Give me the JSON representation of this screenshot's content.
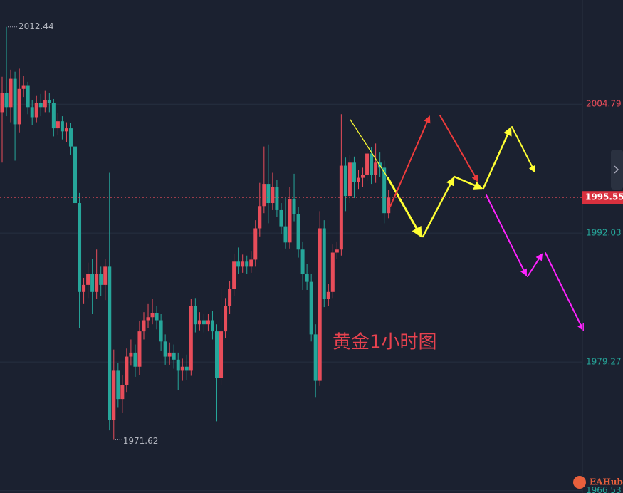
{
  "chart_data": {
    "type": "candlestick",
    "annotation": "黄金1小时图",
    "up_color": "#e84d5a",
    "down_color": "#26a69a",
    "grid": true,
    "ylim": [
      1966.3,
      2015.1
    ],
    "yticks": [
      1966.53,
      1979.27,
      1992.03,
      2004.79
    ],
    "ohlc": [
      [
        2004.0,
        2007.5,
        1999.0,
        2005.9
      ],
      [
        2005.9,
        2012.44,
        2003.6,
        2004.5
      ],
      [
        2004.5,
        2008.2,
        2003.0,
        2007.3
      ],
      [
        2007.3,
        2008.0,
        1999.2,
        2002.8
      ],
      [
        2002.8,
        2008.3,
        2002.0,
        2006.3
      ],
      [
        2006.3,
        2007.6,
        2005.5,
        2006.6
      ],
      [
        2006.6,
        2007.0,
        2003.8,
        2004.5
      ],
      [
        2004.5,
        2005.2,
        2002.7,
        2003.5
      ],
      [
        2003.5,
        2005.6,
        2003.0,
        2004.9
      ],
      [
        2004.9,
        2005.8,
        2003.6,
        2004.5
      ],
      [
        2004.5,
        2006.1,
        2004.0,
        2005.2
      ],
      [
        2005.2,
        2005.9,
        2004.0,
        2004.9
      ],
      [
        2004.9,
        2005.3,
        2001.6,
        2002.4
      ],
      [
        2002.4,
        2003.9,
        2001.7,
        2003.1
      ],
      [
        2003.1,
        2003.6,
        2001.3,
        2002.1
      ],
      [
        2002.1,
        2003.0,
        2001.0,
        2002.4
      ],
      [
        2002.4,
        2002.9,
        1999.8,
        2000.6
      ],
      [
        2000.6,
        2001.2,
        1993.9,
        1995.0
      ],
      [
        1995.0,
        1996.0,
        1982.6,
        1986.2
      ],
      [
        1986.2,
        1987.6,
        1985.0,
        1986.9
      ],
      [
        1986.9,
        1989.1,
        1985.6,
        1988.0
      ],
      [
        1988.0,
        1989.5,
        1984.0,
        1986.2
      ],
      [
        1986.2,
        1990.4,
        1985.5,
        1988.0
      ],
      [
        1988.0,
        1988.7,
        1985.8,
        1986.9
      ],
      [
        1986.9,
        1989.5,
        1985.4,
        1988.7
      ],
      [
        1988.7,
        1998.0,
        1972.5,
        1973.5
      ],
      [
        1973.5,
        1980.5,
        1971.62,
        1978.4
      ],
      [
        1978.4,
        1979.2,
        1974.8,
        1975.6
      ],
      [
        1975.6,
        1978.0,
        1974.2,
        1977.0
      ],
      [
        1977.0,
        1980.6,
        1976.3,
        1979.8
      ],
      [
        1979.8,
        1981.5,
        1978.9,
        1980.2
      ],
      [
        1980.2,
        1981.0,
        1977.8,
        1978.8
      ],
      [
        1978.8,
        1983.3,
        1978.0,
        1982.3
      ],
      [
        1982.3,
        1984.2,
        1981.5,
        1983.4
      ],
      [
        1983.4,
        1985.0,
        1982.6,
        1983.7
      ],
      [
        1983.7,
        1985.5,
        1983.0,
        1984.1
      ],
      [
        1984.1,
        1984.8,
        1982.5,
        1983.4
      ],
      [
        1983.4,
        1984.0,
        1980.4,
        1981.3
      ],
      [
        1981.3,
        1982.0,
        1979.0,
        1979.8
      ],
      [
        1979.8,
        1981.2,
        1979.0,
        1980.2
      ],
      [
        1980.2,
        1981.0,
        1978.6,
        1979.5
      ],
      [
        1979.5,
        1980.2,
        1976.5,
        1978.4
      ],
      [
        1978.4,
        1979.6,
        1977.4,
        1978.8
      ],
      [
        1978.8,
        1980.0,
        1977.5,
        1978.4
      ],
      [
        1978.4,
        1985.5,
        1977.9,
        1984.8
      ],
      [
        1984.8,
        1985.6,
        1982.2,
        1983.0
      ],
      [
        1983.0,
        1984.2,
        1982.4,
        1983.4
      ],
      [
        1983.4,
        1984.0,
        1982.2,
        1983.0
      ],
      [
        1983.0,
        1984.0,
        1982.3,
        1983.4
      ],
      [
        1983.4,
        1984.3,
        1981.5,
        1982.3
      ],
      [
        1982.3,
        1983.0,
        1973.4,
        1977.7
      ],
      [
        1977.7,
        1986.5,
        1977.0,
        1982.3
      ],
      [
        1982.3,
        1985.6,
        1981.6,
        1984.8
      ],
      [
        1984.8,
        1987.3,
        1984.0,
        1986.5
      ],
      [
        1986.5,
        1990.0,
        1985.8,
        1989.2
      ],
      [
        1989.2,
        1990.6,
        1988.0,
        1988.7
      ],
      [
        1988.7,
        1989.9,
        1988.1,
        1989.2
      ],
      [
        1989.2,
        1989.8,
        1988.0,
        1988.7
      ],
      [
        1988.7,
        1990.2,
        1988.1,
        1989.4
      ],
      [
        1989.4,
        1993.3,
        1988.7,
        1992.5
      ],
      [
        1992.5,
        1997.0,
        1991.7,
        1994.7
      ],
      [
        1994.7,
        2000.6,
        1994.0,
        1996.9
      ],
      [
        1996.9,
        2000.8,
        1993.0,
        1995.0
      ],
      [
        1995.0,
        1998.0,
        1994.3,
        1996.6
      ],
      [
        1996.6,
        1997.3,
        1993.6,
        1994.3
      ],
      [
        1994.3,
        1995.0,
        1991.9,
        1992.7
      ],
      [
        1992.7,
        1995.5,
        1990.5,
        1991.1
      ],
      [
        1991.1,
        1996.6,
        1990.5,
        1995.4
      ],
      [
        1995.4,
        1997.9,
        1993.2,
        1993.9
      ],
      [
        1993.9,
        1994.6,
        1989.6,
        1990.4
      ],
      [
        1990.4,
        1991.2,
        1986.4,
        1988.0
      ],
      [
        1988.0,
        1989.0,
        1986.4,
        1987.2
      ],
      [
        1987.2,
        1988.0,
        1981.3,
        1982.0
      ],
      [
        1982.0,
        1983.0,
        1975.8,
        1977.4
      ],
      [
        1977.4,
        1994.2,
        1976.9,
        1992.5
      ],
      [
        1992.5,
        1993.3,
        1984.7,
        1985.5
      ],
      [
        1985.5,
        1987.0,
        1984.8,
        1986.2
      ],
      [
        1986.2,
        1990.9,
        1985.6,
        1990.1
      ],
      [
        1990.1,
        1991.2,
        1989.5,
        1990.4
      ],
      [
        1990.4,
        2003.8,
        1989.8,
        1998.7
      ],
      [
        1998.7,
        1999.5,
        1994.2,
        1995.7
      ],
      [
        1995.7,
        1999.8,
        1995.0,
        1999.0
      ],
      [
        1999.0,
        1999.6,
        1995.5,
        1997.1
      ],
      [
        1997.1,
        1998.3,
        1996.4,
        1997.5
      ],
      [
        1997.5,
        1998.5,
        1996.6,
        1997.8
      ],
      [
        1997.8,
        2001.3,
        1997.2,
        1999.9
      ],
      [
        1999.9,
        2000.5,
        1996.9,
        1997.8
      ],
      [
        1997.8,
        2000.9,
        1997.0,
        1999.0
      ],
      [
        1999.0,
        2000.0,
        1997.6,
        1998.5
      ],
      [
        1998.5,
        1999.2,
        1993.0,
        1994.0
      ],
      [
        1994.0,
        1996.3,
        1993.5,
        1995.55
      ]
    ],
    "logo": "EAHub"
  }
}
